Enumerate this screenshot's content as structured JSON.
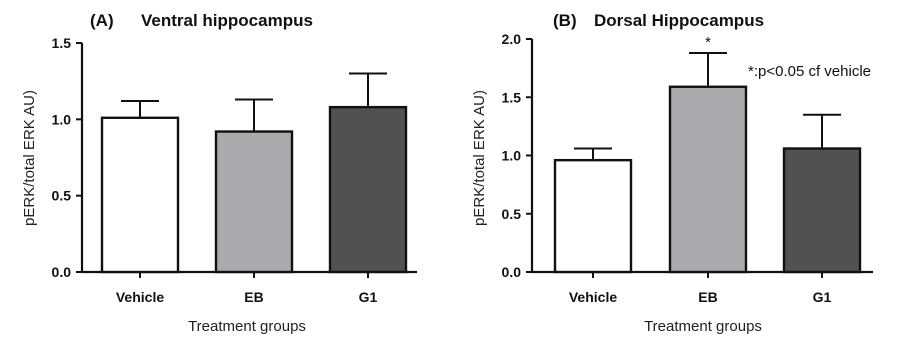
{
  "chart_data": [
    {
      "type": "bar",
      "panel_label": "(A)",
      "title": "Ventral hippocampus",
      "categories": [
        "Vehicle",
        "EB",
        "G1"
      ],
      "values": [
        1.01,
        0.92,
        1.08
      ],
      "error": [
        0.11,
        0.21,
        0.22
      ],
      "colors": [
        "#ffffff",
        "#a9aaad",
        "#505153"
      ],
      "xlabel": "Treatment groups",
      "ylabel": "pERK/total ERK AU)",
      "ylim": [
        0,
        1.5
      ],
      "yticks": [
        "0.0",
        "0.5",
        "1.0",
        "1.5"
      ],
      "significance": [
        "",
        "",
        ""
      ],
      "annotation": ""
    },
    {
      "type": "bar",
      "panel_label": "(B)",
      "title": "Dorsal Hippocampus",
      "categories": [
        "Vehicle",
        "EB",
        "G1"
      ],
      "values": [
        0.96,
        1.59,
        1.06
      ],
      "error": [
        0.1,
        0.29,
        0.29
      ],
      "colors": [
        "#ffffff",
        "#a9aaad",
        "#505153"
      ],
      "xlabel": "Treatment groups",
      "ylabel": "pERK/total ERK AU)",
      "ylim": [
        0,
        2.0
      ],
      "yticks": [
        "0.0",
        "0.5",
        "1.0",
        "1.5",
        "2.0"
      ],
      "significance": [
        "",
        "*",
        ""
      ],
      "annotation": "*:p<0.05 cf vehicle"
    }
  ]
}
